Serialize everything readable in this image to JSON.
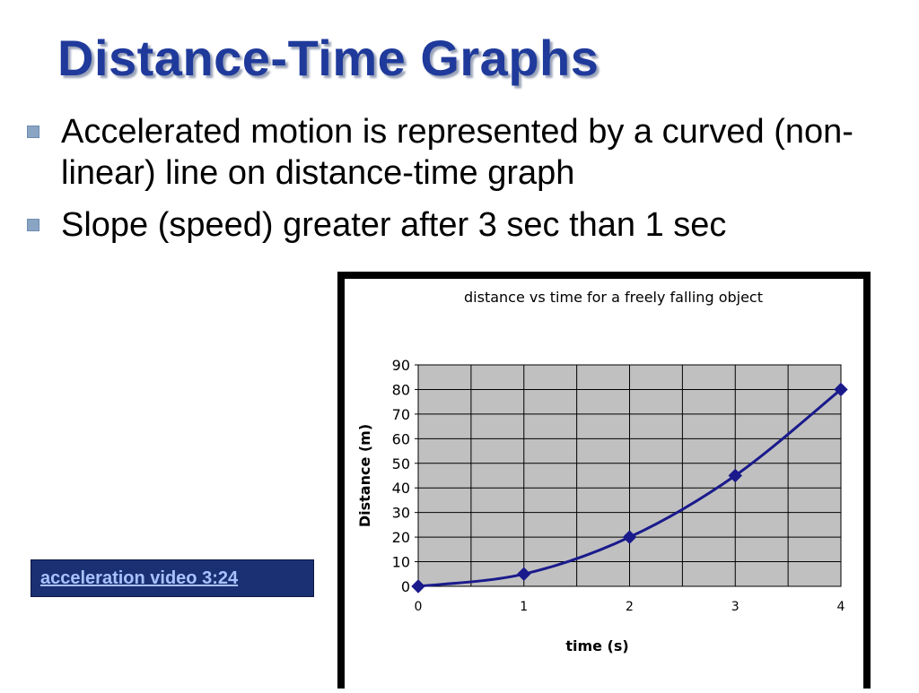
{
  "slide": {
    "title": "Distance-Time Graphs",
    "bullets": [
      "Accelerated motion is represented by a curved (non-linear) line on distance-time graph",
      "Slope (speed) greater after 3 sec than 1 sec"
    ],
    "video_link": "acceleration video 3:24"
  },
  "colors": {
    "title": "#1f3a9b",
    "series": "#1a1a8c",
    "plot_bg": "#c0c0c0",
    "link_bg": "#1b2f73"
  },
  "chart_data": {
    "type": "line",
    "title": "distance  vs time for a freely falling object",
    "xlabel": "time (s)",
    "ylabel": "Distance (m)",
    "x": [
      0,
      1,
      2,
      3,
      4
    ],
    "series": [
      {
        "values": [
          0,
          5,
          20,
          45,
          80
        ]
      }
    ],
    "xlim": [
      0,
      4
    ],
    "ylim": [
      0,
      90
    ],
    "xticks": [
      "0",
      "1",
      "2",
      "3",
      "4"
    ],
    "yticks": [
      "0",
      "10",
      "20",
      "30",
      "40",
      "50",
      "60",
      "70",
      "80",
      "90"
    ],
    "grid": true,
    "legend": "none",
    "marker": "diamond"
  }
}
